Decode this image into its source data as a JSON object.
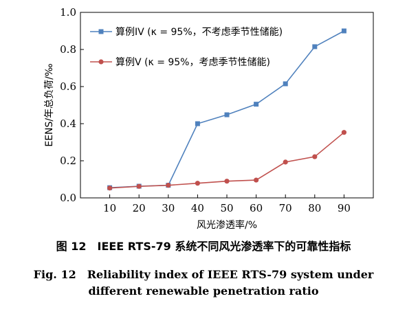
{
  "chart_data": {
    "type": "line",
    "x": [
      10,
      20,
      30,
      40,
      50,
      60,
      70,
      80,
      90
    ],
    "xticks": [
      "10",
      "20",
      "30",
      "40",
      "50",
      "60",
      "70",
      "80",
      "90"
    ],
    "yticks": [
      "0.0",
      "0.2",
      "0.4",
      "0.6",
      "0.8",
      "1.0"
    ],
    "xlim": [
      0,
      100
    ],
    "ylim": [
      0,
      1.0
    ],
    "xlabel": "风光渗透率/%",
    "ylabel": "EENS/年总负荷/‰",
    "legend_position": "top-left",
    "grid": false,
    "series": [
      {
        "name": "算例IV (κ = 95%，不考虑季节性储能)",
        "color": "#4f81bd",
        "marker": "square",
        "values": [
          0.055,
          0.063,
          0.068,
          0.4,
          0.448,
          0.505,
          0.615,
          0.815,
          0.9
        ]
      },
      {
        "name": "算例V (κ = 95%，考虑季节性储能)",
        "color": "#c0504d",
        "marker": "circle",
        "values": [
          0.053,
          0.062,
          0.068,
          0.079,
          0.09,
          0.096,
          0.193,
          0.222,
          0.353
        ]
      }
    ]
  },
  "caption": {
    "cn": "图 12　IEEE RTS-79 系统不同风光渗透率下的可靠性指标",
    "en_line1": "Fig. 12　Reliability index of IEEE RTS-79 system under",
    "en_line2": "different renewable penetration ratio"
  }
}
